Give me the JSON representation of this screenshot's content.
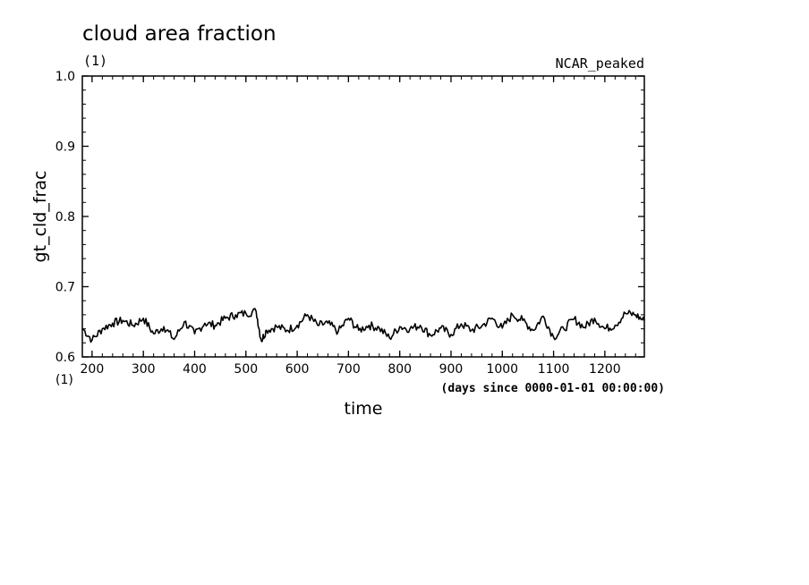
{
  "chart_data": {
    "type": "line",
    "title": "cloud area fraction",
    "subtitle": "(1)",
    "dataset_label": "NCAR_peaked",
    "ylabel": "gt_cld_frac",
    "y_units": "(1)",
    "xlabel": "time",
    "x_units": "(days since 0000-01-01 00:00:00)",
    "xlim": [
      181,
      1277
    ],
    "ylim": [
      0.6,
      1.0
    ],
    "x_ticks": [
      200,
      300,
      400,
      500,
      600,
      700,
      800,
      900,
      1000,
      1100,
      1200
    ],
    "x_tick_labels": [
      "200",
      "300",
      "400",
      "500",
      "600",
      "700",
      "800",
      "900",
      "1000",
      "1100",
      "1200"
    ],
    "y_ticks": [
      0.6,
      0.7,
      0.8,
      0.9,
      1.0
    ],
    "y_tick_labels": [
      "0.6",
      "0.7",
      "0.8",
      "0.9",
      "1.0"
    ],
    "grid": false,
    "line_color": "#000000",
    "series": [
      {
        "x": [
          181,
          200,
          220,
          240,
          260,
          280,
          300,
          320,
          340,
          360,
          380,
          400,
          420,
          440,
          460,
          480,
          500,
          520,
          530,
          540,
          560,
          580,
          600,
          620,
          640,
          660,
          680,
          700,
          720,
          740,
          760,
          780,
          800,
          820,
          840,
          860,
          880,
          900,
          920,
          940,
          960,
          980,
          1000,
          1020,
          1040,
          1060,
          1080,
          1100,
          1120,
          1140,
          1160,
          1180,
          1200,
          1220,
          1240,
          1260,
          1277
        ],
        "values": [
          0.641,
          0.624,
          0.64,
          0.648,
          0.652,
          0.645,
          0.655,
          0.633,
          0.643,
          0.625,
          0.65,
          0.633,
          0.648,
          0.645,
          0.655,
          0.66,
          0.662,
          0.665,
          0.623,
          0.638,
          0.643,
          0.638,
          0.645,
          0.66,
          0.645,
          0.648,
          0.636,
          0.655,
          0.638,
          0.645,
          0.641,
          0.627,
          0.643,
          0.64,
          0.645,
          0.631,
          0.641,
          0.632,
          0.647,
          0.638,
          0.644,
          0.655,
          0.641,
          0.66,
          0.652,
          0.638,
          0.658,
          0.628,
          0.64,
          0.654,
          0.642,
          0.655,
          0.64,
          0.645,
          0.662,
          0.66,
          0.651
        ]
      }
    ]
  }
}
